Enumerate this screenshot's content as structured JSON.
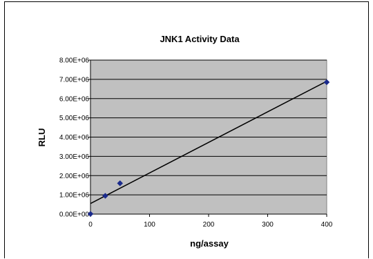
{
  "chart_data": {
    "type": "scatter",
    "title": "JNK1 Activity Data",
    "xlabel": "ng/assay",
    "ylabel": "RLU",
    "xlim": [
      0,
      400
    ],
    "ylim": [
      0,
      8000000
    ],
    "x_ticks": [
      0,
      100,
      200,
      300,
      400
    ],
    "x_tick_labels": [
      "0",
      "100",
      "200",
      "300",
      "400"
    ],
    "y_ticks": [
      0,
      1000000,
      2000000,
      3000000,
      4000000,
      5000000,
      6000000,
      7000000,
      8000000
    ],
    "y_tick_labels": [
      "0.00E+00",
      "1.00E+06",
      "2.00E+06",
      "3.00E+06",
      "4.00E+06",
      "5.00E+06",
      "6.00E+06",
      "7.00E+06",
      "8.00E+06"
    ],
    "grid": true,
    "legend": "none",
    "series": [
      {
        "points": [
          {
            "x": 0,
            "y": 10000
          },
          {
            "x": 25,
            "y": 950000
          },
          {
            "x": 50,
            "y": 1600000
          },
          {
            "x": 400,
            "y": 6850000
          }
        ],
        "marker": "diamond",
        "color": "#1a2a8c"
      }
    ],
    "trendline": {
      "x": [
        0,
        400
      ],
      "y": [
        550000,
        6900000
      ],
      "color": "#000000"
    },
    "colors": {
      "plot_background": "#c0c0c0",
      "gridline": "#000000",
      "marker": "#1a2a8c"
    }
  }
}
